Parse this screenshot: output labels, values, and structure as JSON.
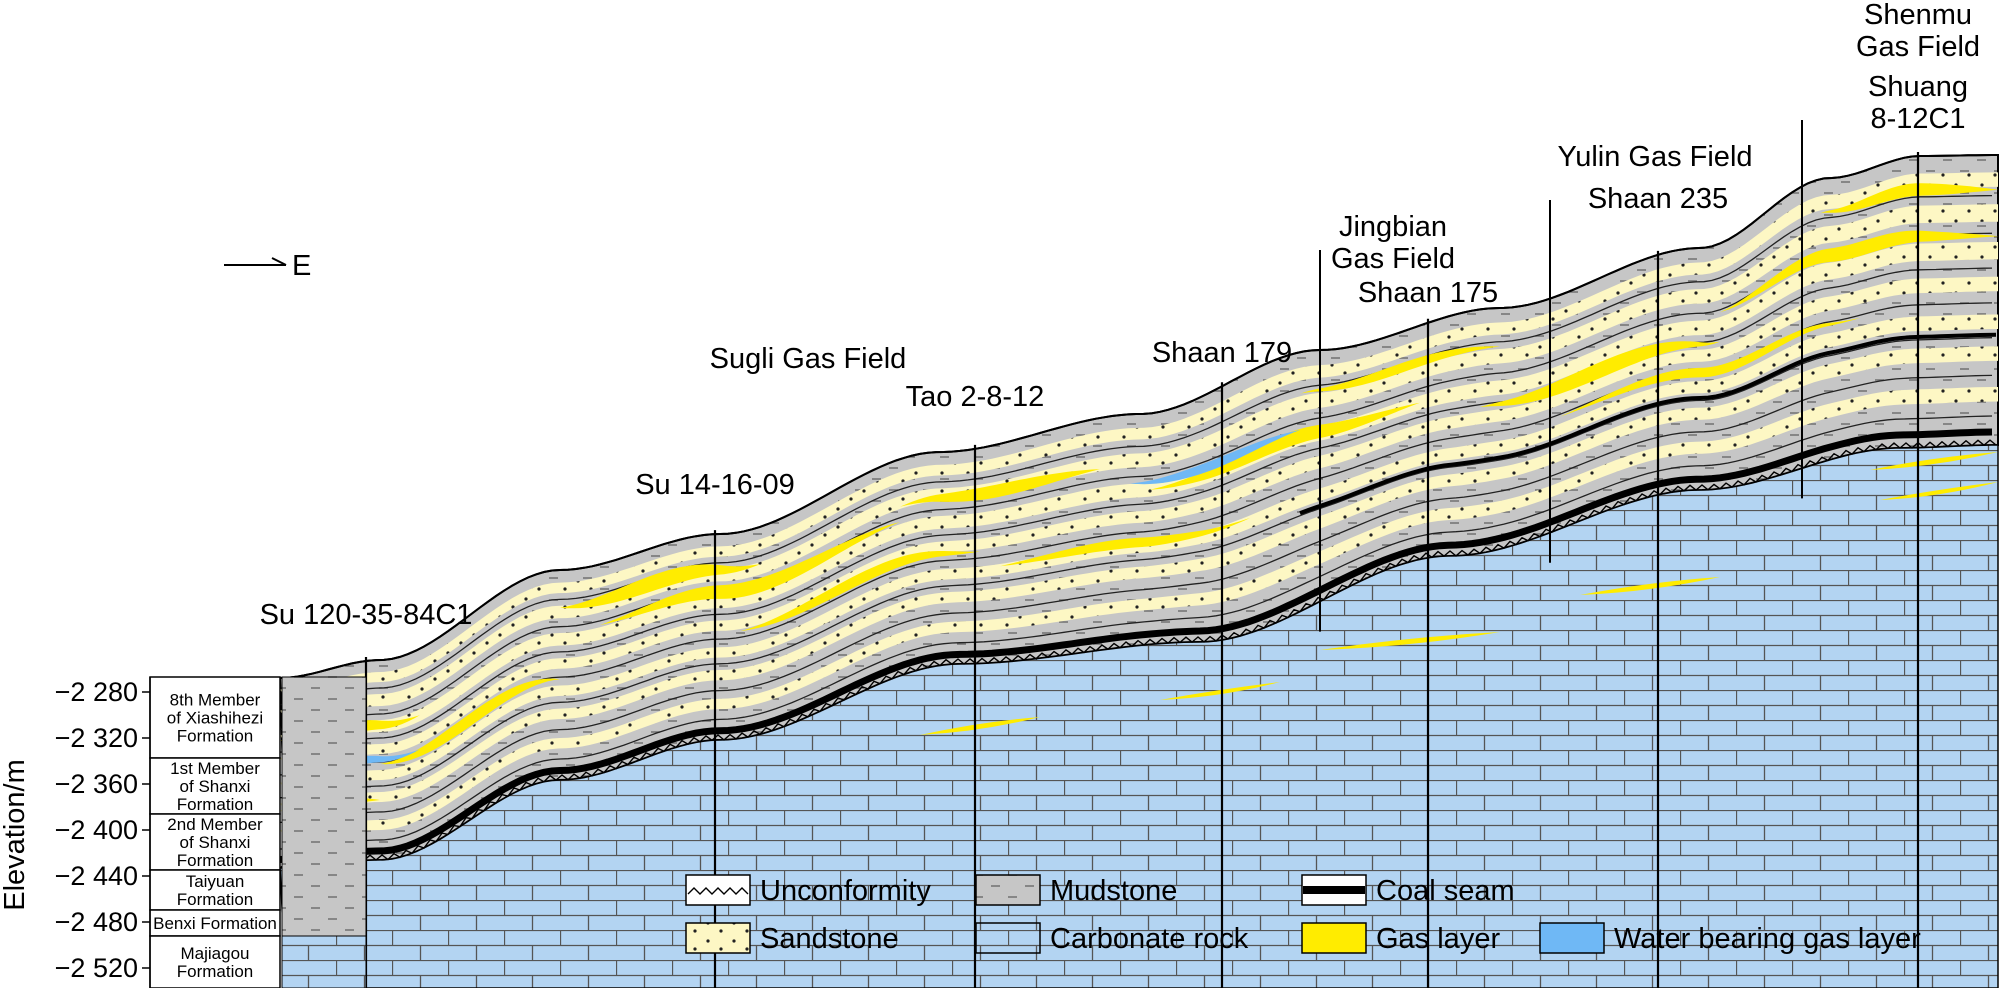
{
  "direction": {
    "label": "E"
  },
  "axis": {
    "title": "Elevation/m",
    "ticks": [
      "−2 280",
      "−2 320",
      "−2 360",
      "−2 400",
      "−2 440",
      "−2 480",
      "−2 520"
    ]
  },
  "formations": [
    {
      "lines": [
        "8th Member",
        "of Xiashihezi",
        "Formation"
      ]
    },
    {
      "lines": [
        "1st Member",
        "of Shanxi",
        "Formation"
      ]
    },
    {
      "lines": [
        "2nd Member",
        "of Shanxi",
        "Formation"
      ]
    },
    {
      "lines": [
        "Taiyuan",
        "Formation"
      ]
    },
    {
      "lines": [
        "Benxi Formation"
      ]
    },
    {
      "lines": [
        "Majiagou",
        "Formation"
      ]
    }
  ],
  "gas_fields": [
    {
      "lines": [
        "Sugli Gas Field"
      ]
    },
    {
      "lines": [
        "Jingbian",
        "Gas Field"
      ]
    },
    {
      "lines": [
        "Yulin Gas Field"
      ]
    },
    {
      "lines": [
        "Shenmu",
        "Gas Field"
      ]
    }
  ],
  "wells": [
    {
      "lines": [
        "Su 120-35-84C1"
      ]
    },
    {
      "lines": [
        "Su 14-16-09"
      ]
    },
    {
      "lines": [
        "Tao 2-8-12"
      ]
    },
    {
      "lines": [
        "Shaan 179"
      ]
    },
    {
      "lines": [
        "Shaan 175"
      ]
    },
    {
      "lines": [
        "Shaan 235"
      ]
    },
    {
      "lines": [
        "Shuang",
        "8-12C1"
      ]
    }
  ],
  "legend": [
    {
      "key": "unconformity",
      "label": "Unconformity"
    },
    {
      "key": "mudstone",
      "label": "Mudstone"
    },
    {
      "key": "coal",
      "label": "Coal seam"
    },
    {
      "key": "sandstone",
      "label": "Sandstone"
    },
    {
      "key": "carbonate",
      "label": "Carbonate rock"
    },
    {
      "key": "gas",
      "label": "Gas layer"
    },
    {
      "key": "water",
      "label": "Water bearing gas layer"
    }
  ],
  "colors": {
    "mudstone": "#c6c6c6",
    "sandstone": "#fdf7c4",
    "carbonate": "#b3d4f2",
    "gas": "#ffec00",
    "water": "#6fb8f5",
    "coal": "#000000"
  }
}
